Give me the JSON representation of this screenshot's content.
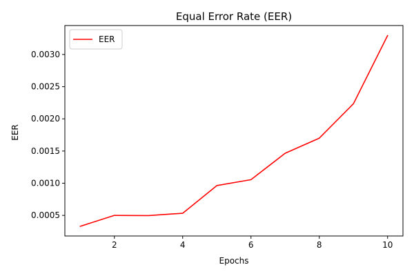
{
  "chart_data": {
    "type": "line",
    "title": "Equal Error Rate (EER)",
    "xlabel": "Epochs",
    "ylabel": "EER",
    "xlim": [
      0.55,
      10.45
    ],
    "ylim": [
      0.00018,
      0.00345
    ],
    "xticks": [
      2,
      4,
      6,
      8,
      10
    ],
    "xtick_labels": [
      "2",
      "4",
      "6",
      "8",
      "10"
    ],
    "yticks": [
      0.0005,
      0.001,
      0.0015,
      0.002,
      0.0025,
      0.003
    ],
    "ytick_labels": [
      "0.0005",
      "0.0010",
      "0.0015",
      "0.0020",
      "0.0025",
      "0.0030"
    ],
    "legend_position": "top-left",
    "grid": false,
    "series": [
      {
        "name": "EER",
        "color": "#ff0000",
        "x": [
          1,
          2,
          3,
          4,
          5,
          6,
          7,
          8,
          9,
          10
        ],
        "y": [
          0.00033,
          0.0005,
          0.000497,
          0.000533,
          0.000963,
          0.001055,
          0.001465,
          0.0017,
          0.002235,
          0.003295
        ]
      }
    ]
  }
}
